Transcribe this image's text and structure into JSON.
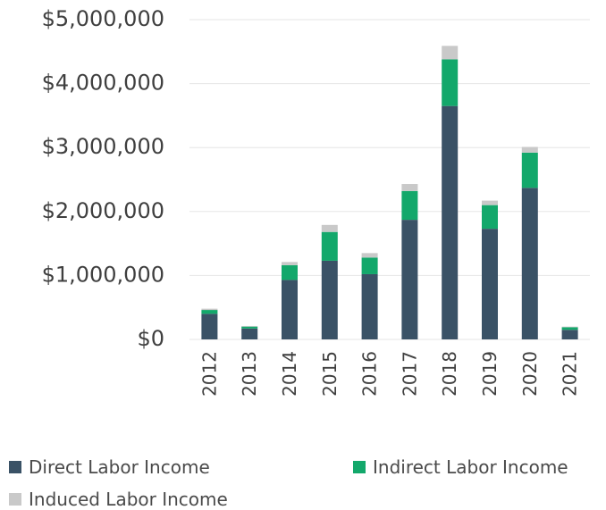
{
  "chart_data": {
    "type": "bar",
    "stacked": true,
    "categories": [
      "2012",
      "2013",
      "2014",
      "2015",
      "2016",
      "2017",
      "2018",
      "2019",
      "2020",
      "2021"
    ],
    "series": [
      {
        "name": "Direct Labor Income",
        "color": "#3a5266",
        "values": [
          400000,
          170000,
          930000,
          1230000,
          1020000,
          1870000,
          3650000,
          1730000,
          2370000,
          150000
        ]
      },
      {
        "name": "Indirect Labor Income",
        "color": "#13a86b",
        "values": [
          60000,
          30000,
          230000,
          450000,
          260000,
          450000,
          730000,
          370000,
          550000,
          40000
        ]
      },
      {
        "name": "Induced Labor Income",
        "color": "#c9c9c9",
        "values": [
          20000,
          10000,
          50000,
          110000,
          70000,
          110000,
          210000,
          70000,
          90000,
          10000
        ]
      }
    ],
    "yticks": [
      "$0",
      "$1,000,000",
      "$2,000,000",
      "$3,000,000",
      "$4,000,000",
      "$5,000,000"
    ],
    "ylim": [
      0,
      5000000
    ],
    "title": "",
    "xlabel": "",
    "ylabel": "",
    "grid": true,
    "legend_position": "bottom"
  }
}
